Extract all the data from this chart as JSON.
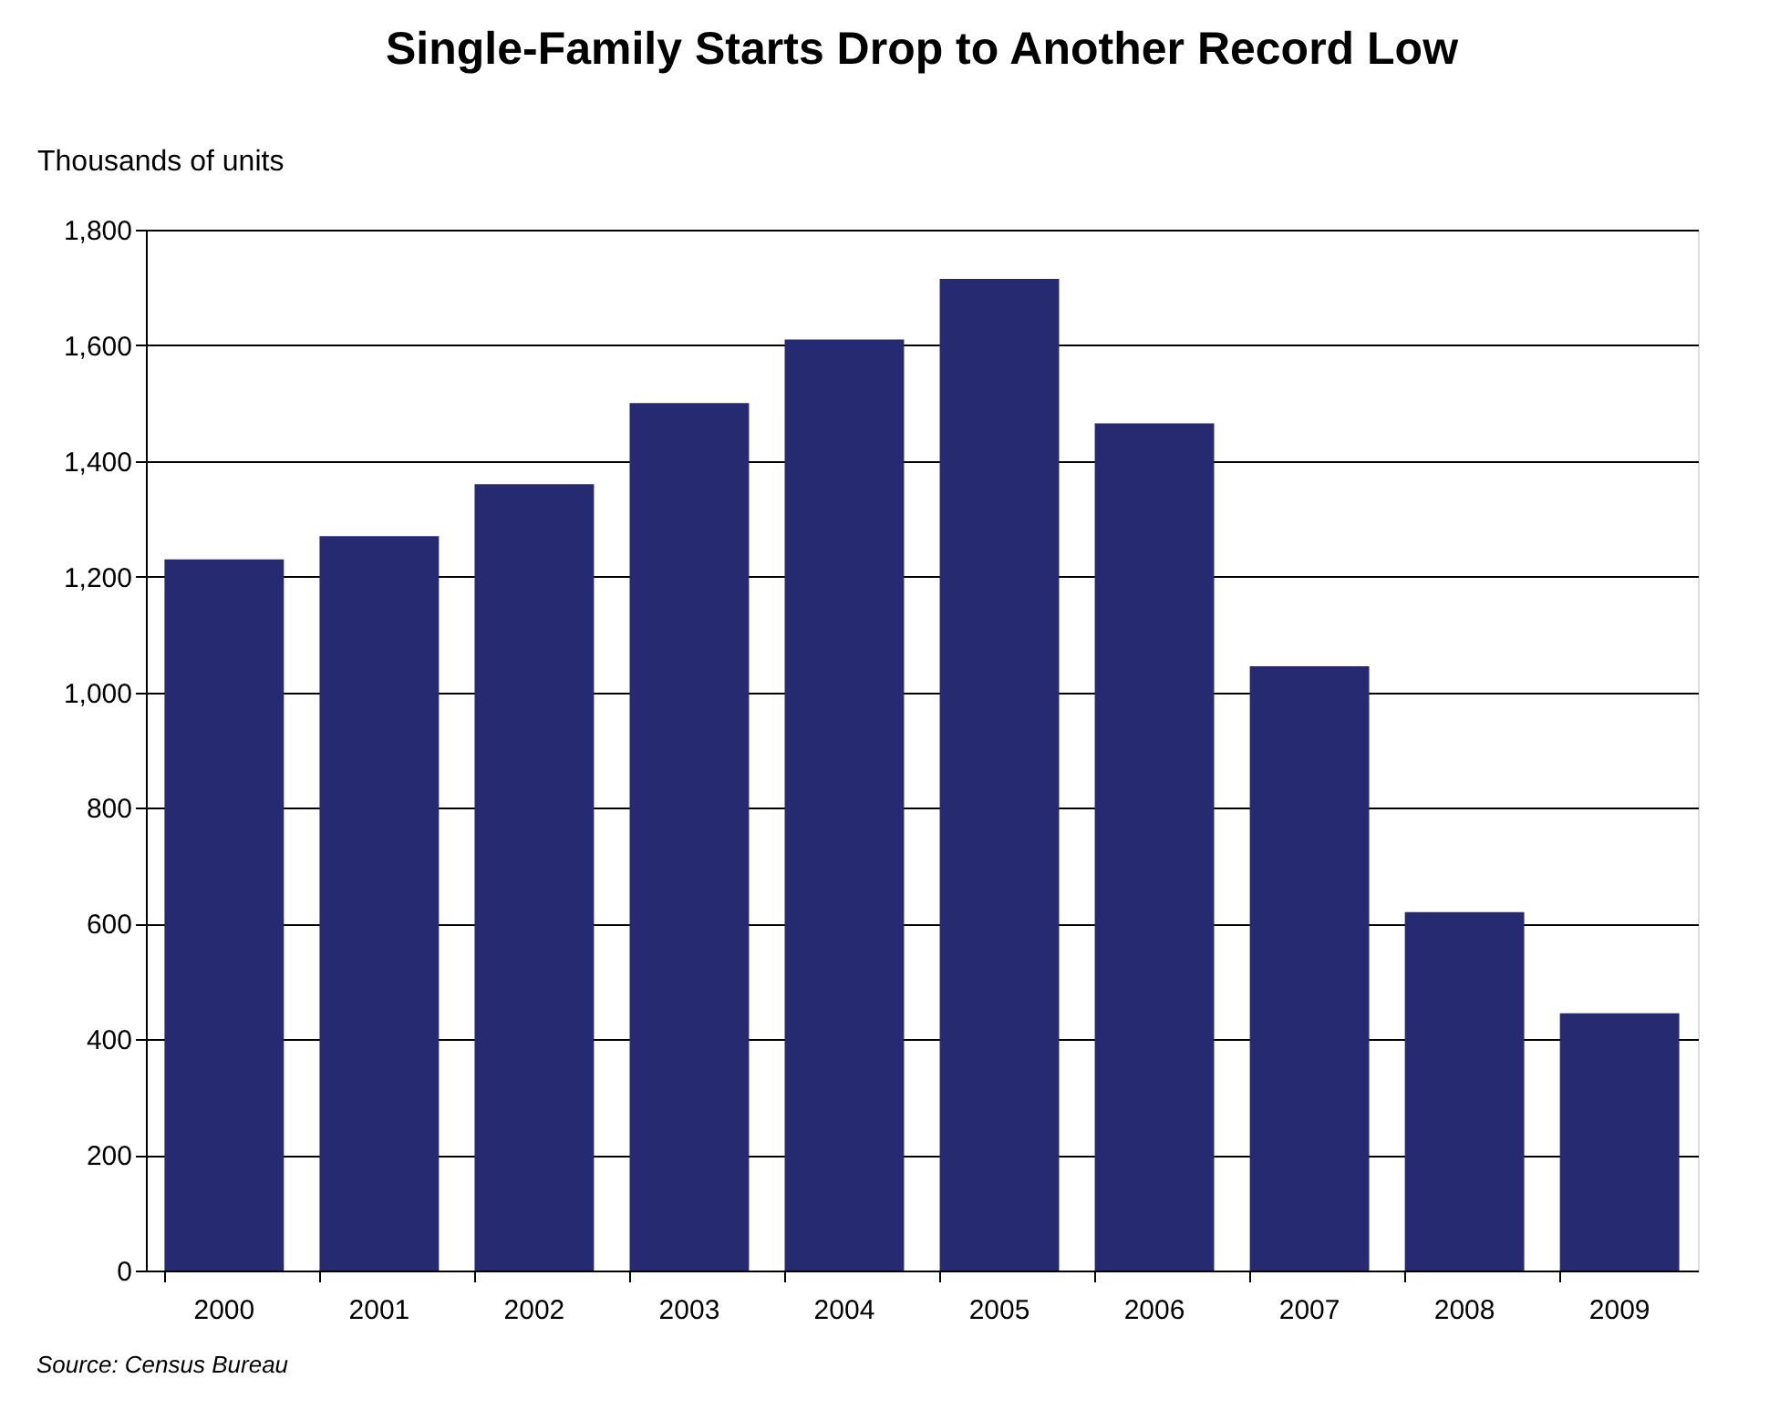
{
  "chart_data": {
    "type": "bar",
    "title": "Single-Family Starts Drop to Another Record Low",
    "ylabel": "Thousands of units",
    "categories": [
      "2000",
      "2001",
      "2002",
      "2003",
      "2004",
      "2005",
      "2006",
      "2007",
      "2008",
      "2009"
    ],
    "values": [
      1230,
      1270,
      1360,
      1500,
      1610,
      1715,
      1465,
      1045,
      620,
      445
    ],
    "color": "#262a70",
    "ylim": [
      0,
      1800
    ],
    "yticks": [
      0,
      200,
      400,
      600,
      800,
      {
        "value": 1000,
        "label": "1,000"
      },
      {
        "value": 1200,
        "label": "1,200"
      },
      {
        "value": 1400,
        "label": "1,400"
      },
      {
        "value": 1600,
        "label": "1,600"
      },
      {
        "value": 1800,
        "label": "1,800"
      }
    ],
    "grid": "y",
    "annotations": [
      "Source: Census Bureau"
    ]
  }
}
